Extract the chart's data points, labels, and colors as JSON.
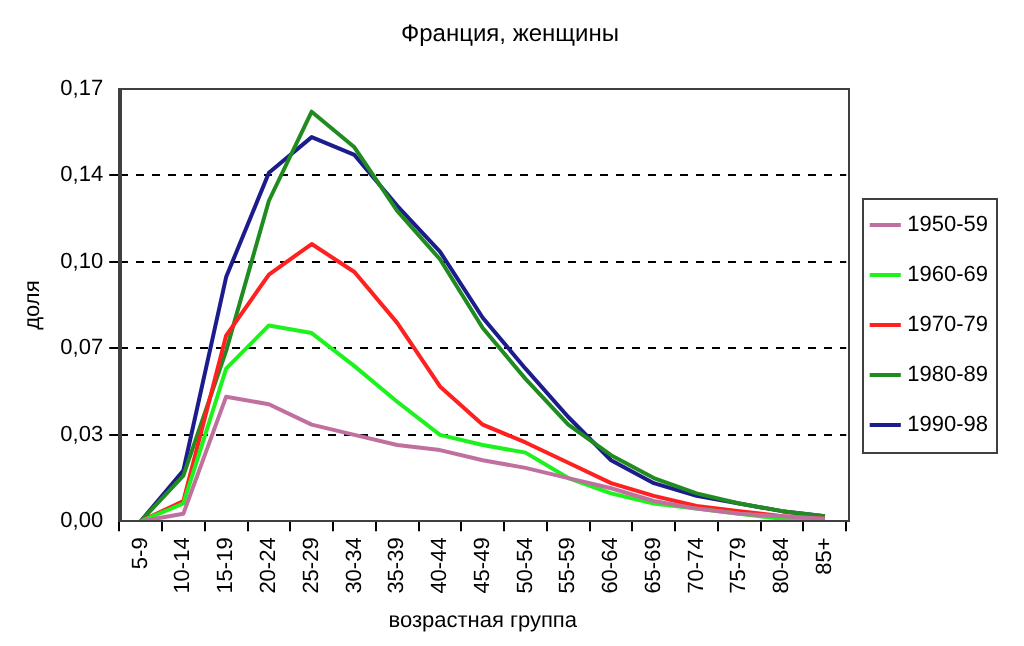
{
  "chart_data": {
    "type": "line",
    "title": "Франция, женщины",
    "xlabel": "возрастная группа",
    "ylabel": "доля",
    "categories": [
      "5-9",
      "10-14",
      "15-19",
      "20-24",
      "25-29",
      "30-34",
      "35-39",
      "40-44",
      "45-49",
      "50-54",
      "55-59",
      "60-64",
      "65-69",
      "70-74",
      "75-79",
      "80-84",
      "85+"
    ],
    "series": [
      {
        "name": "1950-59",
        "color": "#c0709e",
        "values": [
          0,
          0.003,
          0.049,
          0.046,
          0.038,
          0.034,
          0.03,
          0.028,
          0.024,
          0.021,
          0.017,
          0.013,
          0.008,
          0.005,
          0.003,
          0.002,
          0.001
        ]
      },
      {
        "name": "1960-69",
        "color": "#1ef21e",
        "values": [
          0,
          0.007,
          0.06,
          0.077,
          0.074,
          0.061,
          0.047,
          0.034,
          0.03,
          0.027,
          0.017,
          0.011,
          0.007,
          0.005,
          0.003,
          0.001,
          0
        ]
      },
      {
        "name": "1970-79",
        "color": "#ff2020",
        "values": [
          0,
          0.008,
          0.073,
          0.097,
          0.109,
          0.098,
          0.078,
          0.053,
          0.038,
          0.031,
          0.023,
          0.015,
          0.01,
          0.006,
          0.004,
          0.002,
          0.001
        ]
      },
      {
        "name": "1980-89",
        "color": "#208c20",
        "values": [
          0,
          0.018,
          0.067,
          0.126,
          0.161,
          0.147,
          0.122,
          0.103,
          0.076,
          0.056,
          0.038,
          0.026,
          0.017,
          0.011,
          0.007,
          0.004,
          0.002
        ]
      },
      {
        "name": "1990-98",
        "color": "#1c1c8c",
        "values": [
          0,
          0.02,
          0.096,
          0.137,
          0.151,
          0.144,
          0.124,
          0.106,
          0.08,
          0.06,
          0.041,
          0.024,
          0.015,
          0.01,
          0.007,
          0.004,
          0.002
        ]
      }
    ],
    "ylim": [
      0,
      0.17
    ],
    "yticks": [
      {
        "value": 0,
        "label": "0,00"
      },
      {
        "value": 0.034,
        "label": "0,03"
      },
      {
        "value": 0.068,
        "label": "0,07"
      },
      {
        "value": 0.102,
        "label": "0,10"
      },
      {
        "value": 0.136,
        "label": "0,14"
      },
      {
        "value": 0.17,
        "label": "0,17"
      }
    ],
    "grid": "y",
    "legend": "right",
    "marker": "none",
    "line_style": "solid"
  }
}
